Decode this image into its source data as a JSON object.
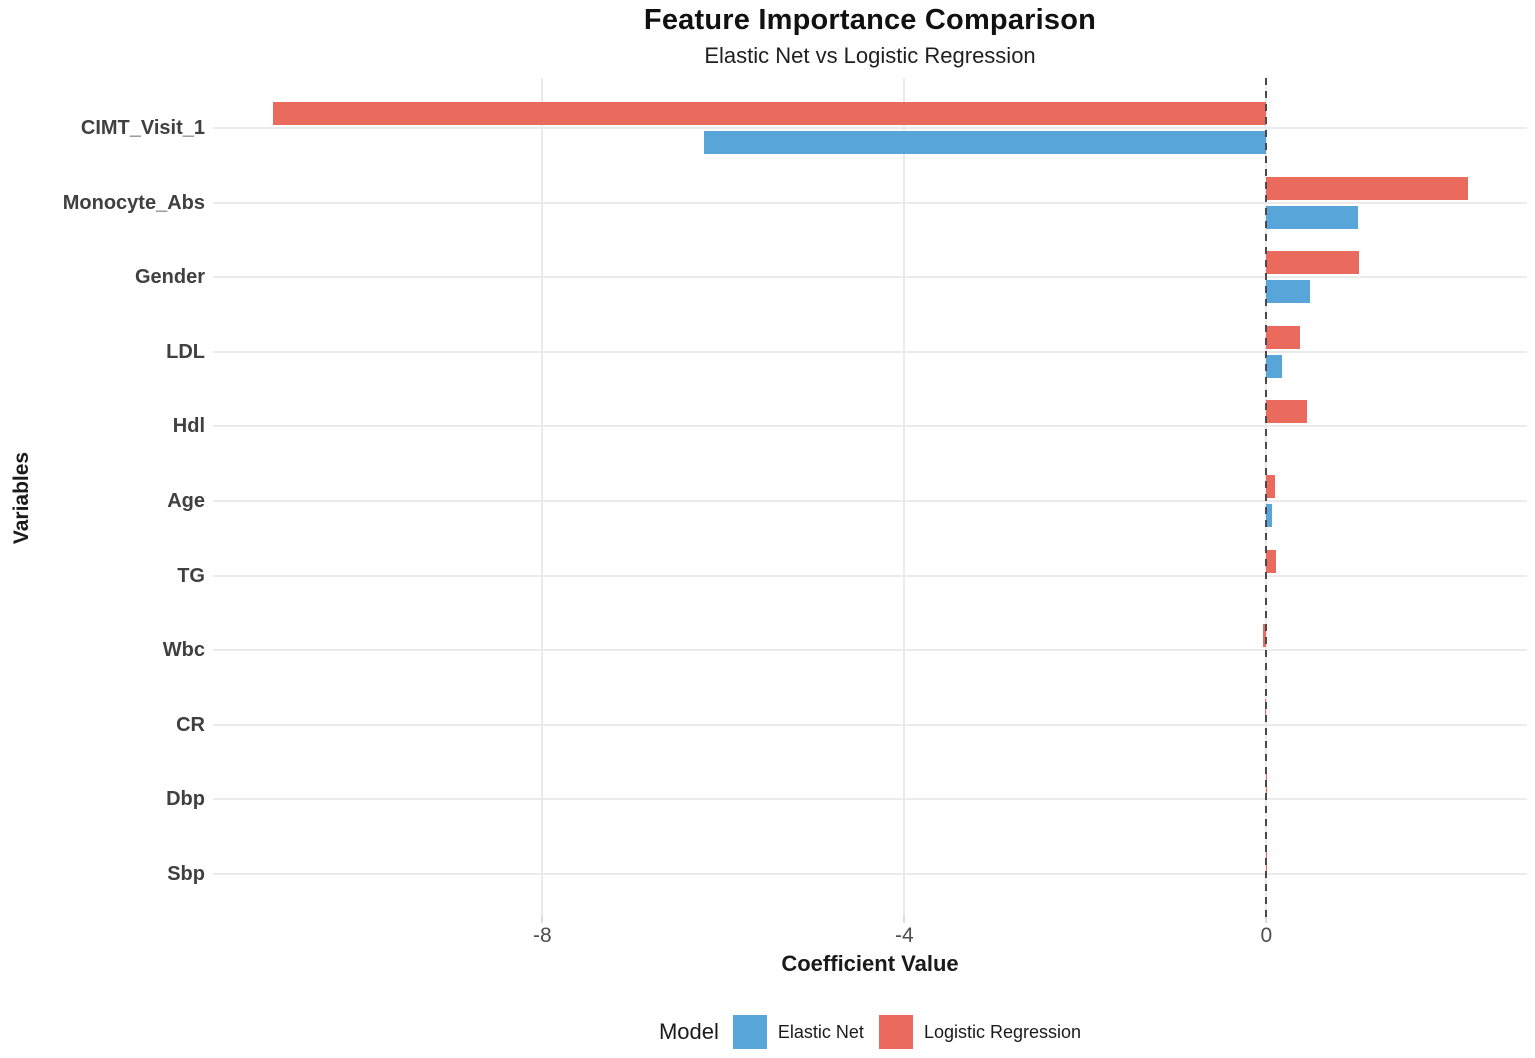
{
  "header": {
    "title": "Feature Importance Comparison",
    "subtitle": "Elastic Net vs Logistic Regression"
  },
  "axes": {
    "x_label": "Coefficient Value",
    "y_label": "Variables",
    "x_ticks": [
      "-8",
      "-4",
      "0"
    ]
  },
  "legend": {
    "title": "Model",
    "items": [
      {
        "label": "Elastic Net",
        "color": "#57A5D9"
      },
      {
        "label": "Logistic Regression",
        "color": "#EA6A5D"
      }
    ]
  },
  "chart_data": {
    "type": "bar",
    "orientation": "horizontal",
    "title": "Feature Importance Comparison",
    "subtitle": "Elastic Net vs Logistic Regression",
    "xlabel": "Coefficient Value",
    "ylabel": "Variables",
    "categories": [
      "CIMT_Visit_1",
      "Monocyte_Abs",
      "Gender",
      "LDL",
      "Hdl",
      "Age",
      "TG",
      "Wbc",
      "CR",
      "Dbp",
      "Sbp"
    ],
    "series": [
      {
        "name": "Elastic Net",
        "color": "#57A5D9",
        "values": [
          -6.21,
          1.01,
          0.48,
          0.17,
          0,
          0.06,
          0,
          0,
          0,
          0,
          0
        ]
      },
      {
        "name": "Logistic Regression",
        "color": "#EA6A5D",
        "values": [
          -10.98,
          2.23,
          1.02,
          0.37,
          0.45,
          0.1,
          0.11,
          -0.04,
          -0.015,
          -0.005,
          -0.003
        ]
      }
    ],
    "xlim": [
      -11.64,
      2.88
    ],
    "xticks": [
      -8,
      -4,
      0
    ],
    "zero_line": {
      "x": 0,
      "style": "dashed",
      "color": "#4a4a4a"
    },
    "grid": "major",
    "grid_color": "#ebebeb",
    "legend_title": "Model",
    "legend_position": "bottom"
  }
}
